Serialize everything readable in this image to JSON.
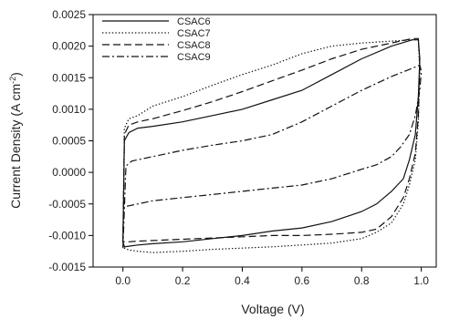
{
  "chart_data": {
    "type": "line",
    "xlabel": "Voltage (V)",
    "ylabel_parts": [
      "Current Density (A cm",
      "-2",
      ")"
    ],
    "xlim": [
      -0.1,
      1.05
    ],
    "ylim": [
      -0.0015,
      0.0025
    ],
    "xticks": [
      0.0,
      0.2,
      0.4,
      0.6,
      0.8,
      1.0
    ],
    "xtick_labels": [
      "0.0",
      "0.2",
      "0.4",
      "0.6",
      "0.8",
      "1.0"
    ],
    "yticks": [
      -0.0015,
      -0.001,
      -0.0005,
      0.0,
      0.0005,
      0.001,
      0.0015,
      0.002,
      0.0025
    ],
    "ytick_labels": [
      "-0.0015",
      "-0.0010",
      "-0.0005",
      "0.0000",
      "0.0005",
      "0.0010",
      "0.0015",
      "0.0020",
      "0.0025"
    ],
    "legend_placement": "top-left",
    "grid": false,
    "series": [
      {
        "name": "CSAC6",
        "dash": "solid",
        "x": [
          0.0,
          0.005,
          0.02,
          0.05,
          0.1,
          0.2,
          0.3,
          0.4,
          0.5,
          0.6,
          0.7,
          0.8,
          0.9,
          0.97,
          0.99,
          0.995,
          0.99,
          0.98,
          0.96,
          0.94,
          0.9,
          0.85,
          0.8,
          0.7,
          0.6,
          0.5,
          0.4,
          0.3,
          0.2,
          0.1,
          0.05,
          0.02,
          0.005,
          0.0
        ],
        "y": [
          -0.0011,
          0.0005,
          0.00063,
          0.0007,
          0.00073,
          0.0008,
          0.0009,
          0.001,
          0.00115,
          0.0013,
          0.00155,
          0.0018,
          0.002,
          0.0021,
          0.0021,
          0.0018,
          0.0012,
          0.0006,
          0.0002,
          -0.0001,
          -0.0003,
          -0.0005,
          -0.00062,
          -0.00078,
          -0.00088,
          -0.00093,
          -0.001,
          -0.00105,
          -0.0011,
          -0.00113,
          -0.00115,
          -0.00117,
          -0.00118,
          -0.0011
        ]
      },
      {
        "name": "CSAC7",
        "dash": "dotted",
        "x": [
          0.0,
          0.005,
          0.02,
          0.05,
          0.1,
          0.2,
          0.3,
          0.4,
          0.5,
          0.6,
          0.7,
          0.8,
          0.9,
          0.97,
          0.99,
          0.995,
          0.99,
          0.98,
          0.96,
          0.94,
          0.9,
          0.85,
          0.8,
          0.7,
          0.6,
          0.5,
          0.4,
          0.3,
          0.2,
          0.1,
          0.05,
          0.02,
          0.005,
          0.0
        ],
        "y": [
          -0.0011,
          0.0007,
          0.00085,
          0.0009,
          0.00105,
          0.0012,
          0.00138,
          0.00155,
          0.0017,
          0.00188,
          0.002,
          0.00205,
          0.00208,
          0.0021,
          0.0021,
          0.0016,
          0.0008,
          0.0002,
          -0.0002,
          -0.0005,
          -0.0008,
          -0.00095,
          -0.00105,
          -0.00112,
          -0.00115,
          -0.00118,
          -0.0012,
          -0.00122,
          -0.00125,
          -0.00127,
          -0.00125,
          -0.00123,
          -0.0012,
          -0.0011
        ]
      },
      {
        "name": "CSAC8",
        "dash": "dashed",
        "x": [
          0.0,
          0.005,
          0.02,
          0.05,
          0.1,
          0.2,
          0.3,
          0.4,
          0.5,
          0.6,
          0.7,
          0.8,
          0.9,
          0.97,
          0.99,
          0.995,
          0.99,
          0.98,
          0.96,
          0.94,
          0.9,
          0.85,
          0.8,
          0.7,
          0.6,
          0.5,
          0.4,
          0.3,
          0.2,
          0.1,
          0.05,
          0.02,
          0.005,
          0.0
        ],
        "y": [
          -0.0011,
          0.0006,
          0.00075,
          0.0008,
          0.00085,
          0.00098,
          0.00112,
          0.00128,
          0.00145,
          0.00162,
          0.0018,
          0.00195,
          0.00205,
          0.00212,
          0.00212,
          0.0017,
          0.0009,
          0.0003,
          -0.0001,
          -0.0004,
          -0.0007,
          -0.0009,
          -0.00095,
          -0.00098,
          -0.001,
          -0.001,
          -0.00102,
          -0.00104,
          -0.00106,
          -0.00108,
          -0.00109,
          -0.0011,
          -0.0011,
          -0.0011
        ]
      },
      {
        "name": "CSAC9",
        "dash": "dash-dot",
        "x": [
          0.0,
          0.01,
          0.03,
          0.05,
          0.1,
          0.2,
          0.3,
          0.4,
          0.5,
          0.6,
          0.7,
          0.8,
          0.9,
          0.97,
          0.995,
          1.0,
          0.995,
          0.98,
          0.96,
          0.93,
          0.9,
          0.85,
          0.8,
          0.7,
          0.6,
          0.5,
          0.4,
          0.3,
          0.2,
          0.1,
          0.05,
          0.02,
          0.0
        ],
        "y": [
          -0.0012,
          0.0001,
          0.00018,
          0.0002,
          0.00025,
          0.00035,
          0.00043,
          0.0005,
          0.0006,
          0.0008,
          0.00105,
          0.0013,
          0.00152,
          0.00165,
          0.0017,
          0.0016,
          0.0013,
          0.0009,
          0.0006,
          0.0004,
          0.00025,
          0.00012,
          5e-05,
          -0.0001,
          -0.0002,
          -0.00025,
          -0.0003,
          -0.00035,
          -0.0004,
          -0.00045,
          -0.0005,
          -0.00053,
          -0.00055
        ]
      }
    ]
  }
}
